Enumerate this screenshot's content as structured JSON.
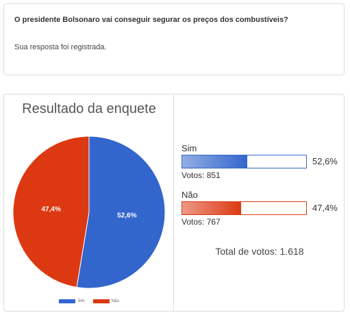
{
  "question": {
    "title": "O presidente Bolsonaro vai conseguir segurar os preços dos combustíveis?",
    "status": "Sua resposta foi registrada."
  },
  "results": {
    "title": "Resultado da enquete",
    "options": [
      {
        "label": "Sim",
        "percent_label": "52,6%",
        "votes_label": "Votos: 851"
      },
      {
        "label": "Não",
        "percent_label": "47,4%",
        "votes_label": "Votos: 767"
      }
    ],
    "total_label": "Total de votos: 1.618"
  },
  "colors": {
    "sim": "#3366cc",
    "sim_light": "#93aee3",
    "nao": "#dc3912",
    "nao_light": "#ec9985"
  },
  "chart_data": {
    "type": "pie",
    "categories": [
      "Sim",
      "Não"
    ],
    "values": [
      52.6,
      47.4
    ],
    "value_labels": [
      "52,6%",
      "47,4%"
    ],
    "votes": [
      851,
      767
    ],
    "legend_position": "bottom"
  }
}
